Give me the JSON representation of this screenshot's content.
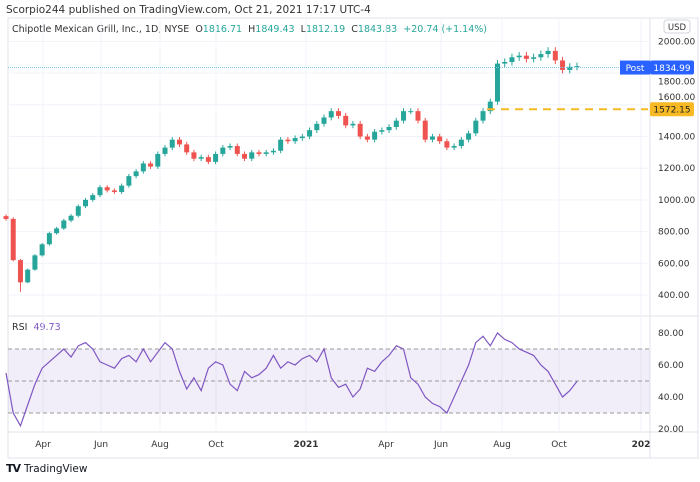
{
  "header": {
    "published": "Scorpio244 published on TradingView.com, Oct 21, 2021 17:17 UTC-4"
  },
  "legend": {
    "symbol": "Chipotle Mexican Grill, Inc., 1D, NYSE",
    "o_label": "O",
    "o": "1816.71",
    "h_label": "H",
    "h": "1849.43",
    "l_label": "L",
    "l": "1812.19",
    "c_label": "C",
    "c": "1843.83",
    "change": "+20.74 (+1.14%)"
  },
  "currency": "USD",
  "post": {
    "label": "Post",
    "value": "1834.99",
    "color": "#2962ff"
  },
  "level": {
    "value": "1572.15",
    "color": "#f7b924"
  },
  "rsi": {
    "label": "RSI",
    "value": "49.73",
    "color": "#7e57c2"
  },
  "footer": {
    "brand": "TradingView"
  },
  "chart_data": [
    {
      "type": "candlestick",
      "title": "Chipotle Mexican Grill, Inc., 1D, NYSE",
      "ylim": [
        300,
        2100
      ],
      "yticks": [
        400,
        600,
        800,
        1000,
        1200,
        1400,
        1600,
        1800,
        2000
      ],
      "ytick_labels": [
        "400.00",
        "600.00",
        "800.00",
        "1000.00",
        "1200.00",
        "1400.00",
        "1600.00",
        "1800.00",
        "2000.00"
      ],
      "xtick_labels": [
        "Apr",
        "Jun",
        "Aug",
        "Oct",
        "2021",
        "Apr",
        "Jun",
        "Aug",
        "Oct",
        "202"
      ],
      "up_color": "#26a69a",
      "down_color": "#ef5350",
      "grid": true,
      "closes": [
        880,
        620,
        480,
        560,
        650,
        720,
        790,
        820,
        870,
        900,
        960,
        1000,
        1030,
        1080,
        1060,
        1050,
        1090,
        1150,
        1180,
        1230,
        1210,
        1290,
        1330,
        1380,
        1350,
        1300,
        1260,
        1270,
        1240,
        1290,
        1330,
        1340,
        1290,
        1260,
        1300,
        1290,
        1300,
        1310,
        1380,
        1370,
        1390,
        1400,
        1440,
        1480,
        1520,
        1560,
        1530,
        1470,
        1480,
        1400,
        1380,
        1430,
        1440,
        1460,
        1500,
        1560,
        1560,
        1500,
        1380,
        1400,
        1370,
        1330,
        1340,
        1380,
        1420,
        1500,
        1560,
        1620,
        1860,
        1870,
        1900,
        1910,
        1890,
        1900,
        1920,
        1940,
        1880,
        1820,
        1840,
        1843.83
      ],
      "low_point": 420
    },
    {
      "type": "line",
      "title": "RSI",
      "ylim": [
        15,
        85
      ],
      "yticks": [
        20,
        40,
        60,
        80
      ],
      "ytick_labels": [
        "20.00",
        "40.00",
        "60.00",
        "80.00"
      ],
      "bands": [
        30,
        50,
        70
      ],
      "values": [
        55,
        30,
        22,
        35,
        48,
        58,
        62,
        66,
        70,
        65,
        72,
        74,
        70,
        62,
        60,
        58,
        64,
        66,
        62,
        70,
        62,
        68,
        74,
        70,
        56,
        45,
        52,
        44,
        58,
        62,
        60,
        48,
        44,
        56,
        52,
        54,
        58,
        66,
        58,
        62,
        60,
        64,
        66,
        62,
        70,
        52,
        46,
        48,
        40,
        45,
        58,
        56,
        62,
        66,
        72,
        70,
        52,
        48,
        40,
        36,
        34,
        30,
        40,
        50,
        60,
        74,
        78,
        72,
        80,
        76,
        74,
        70,
        68,
        66,
        60,
        56,
        48,
        40,
        44,
        49.73
      ]
    }
  ]
}
